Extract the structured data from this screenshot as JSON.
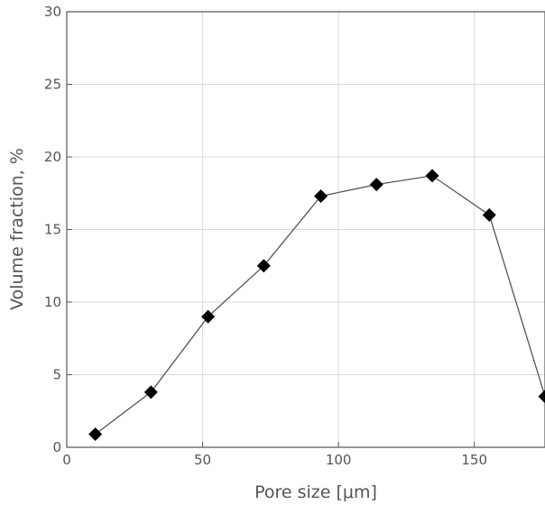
{
  "chart_data": {
    "type": "line",
    "xlabel": "Pore size [μm]",
    "ylabel": "Volume fraction, %",
    "xlim": [
      0,
      176
    ],
    "ylim": [
      0,
      30
    ],
    "grid": true,
    "xticks": [
      "0",
      "50",
      "100",
      "150"
    ],
    "yticks": [
      "0",
      "5",
      "10",
      "15",
      "20",
      "25",
      "30"
    ],
    "marker": "diamond",
    "line_color": "#555555",
    "marker_color": "#000000",
    "x": [
      10.5,
      31,
      52,
      72.5,
      93.5,
      114,
      134.5,
      155.5,
      176
    ],
    "y": [
      0.9,
      3.8,
      9.0,
      12.5,
      17.3,
      18.1,
      18.7,
      16.0,
      3.5
    ]
  }
}
